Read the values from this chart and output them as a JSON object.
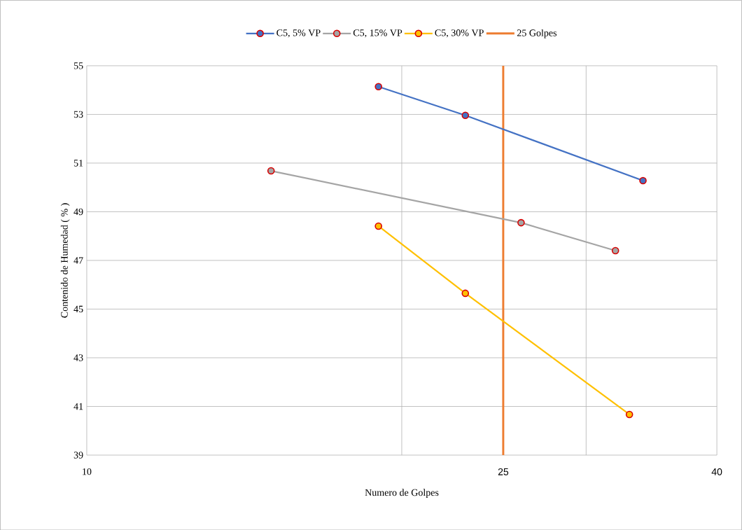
{
  "chart_data": {
    "type": "line",
    "xlabel": "Numero de Golpes",
    "ylabel": "Contenido de Humedad ( % )",
    "log": "x",
    "xlim": [
      10,
      40
    ],
    "ylim": [
      39,
      55
    ],
    "xticks": [
      {
        "value": 10,
        "label": "10"
      },
      {
        "value": 20,
        "label": null
      },
      {
        "value": 25,
        "label": "25"
      },
      {
        "value": 30,
        "label": null
      },
      {
        "value": 40,
        "label": "40"
      }
    ],
    "yticks": [
      {
        "value": 39,
        "label": "39"
      },
      {
        "value": 41,
        "label": "41"
      },
      {
        "value": 43,
        "label": "43"
      },
      {
        "value": 45,
        "label": "45"
      },
      {
        "value": 47,
        "label": "47"
      },
      {
        "value": 49,
        "label": "49"
      },
      {
        "value": 51,
        "label": "51"
      },
      {
        "value": 53,
        "label": "53"
      },
      {
        "value": 55,
        "label": "55"
      }
    ],
    "grid": true,
    "legend": "top",
    "marker": "circle",
    "series": [
      {
        "name": "C5, 5% VP",
        "color": "#4472c4",
        "x": [
          19,
          23,
          34
        ],
        "values": [
          54.14,
          52.96,
          50.28
        ]
      },
      {
        "name": "C5, 15% VP",
        "color": "#a5a5a5",
        "x": [
          15,
          26,
          32
        ],
        "values": [
          50.68,
          48.55,
          47.4
        ]
      },
      {
        "name": "C5, 30% VP",
        "color": "#ffc000",
        "x": [
          19,
          23,
          33
        ],
        "values": [
          48.41,
          45.65,
          40.67
        ]
      }
    ],
    "ref_lines": [
      {
        "axis": "x",
        "value": 25,
        "label": "25 Golpes",
        "color": "#ed7d31"
      }
    ]
  }
}
